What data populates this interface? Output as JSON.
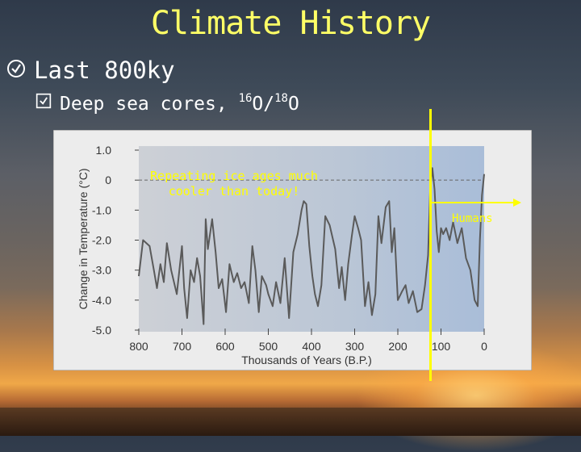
{
  "slide": {
    "title": "Climate History",
    "bullet1": {
      "icon": "check-box-icon",
      "text": "Last 800ky"
    },
    "bullet2": {
      "icon": "check-box-icon",
      "text": "Deep sea cores, ",
      "iso1_mass": "16",
      "iso1_sym": "O/",
      "iso2_mass": "18",
      "iso2_sym": "O"
    }
  },
  "colors": {
    "title": "#ffff66",
    "annotation": "#ffff00",
    "plot_line": "#555555"
  },
  "chart_data": {
    "type": "line",
    "title": "",
    "xlabel": "Thousands of Years (B.P.)",
    "ylabel": "Change in Temperature (°C)",
    "xlim": [
      800,
      0
    ],
    "ylim": [
      -5.0,
      1.0
    ],
    "x_ticks": [
      800,
      700,
      600,
      500,
      400,
      300,
      200,
      100,
      0
    ],
    "x_tick_labels": [
      "800",
      "700",
      "600",
      "500",
      "400",
      "300",
      "200",
      "100",
      "0"
    ],
    "y_ticks": [
      1.0,
      0,
      -1.0,
      -2.0,
      -3.0,
      -4.0,
      -5.0
    ],
    "y_tick_labels": [
      "1.0",
      "0",
      "-1.0",
      "-2.0",
      "-3.0",
      "-4.0",
      "-5.0"
    ],
    "reference_line": {
      "y": 0,
      "style": "dashed"
    },
    "x": [
      800,
      790,
      775,
      765,
      758,
      750,
      742,
      735,
      725,
      712,
      700,
      695,
      688,
      680,
      672,
      665,
      658,
      650,
      645,
      640,
      630,
      622,
      615,
      607,
      598,
      590,
      580,
      572,
      563,
      555,
      545,
      537,
      530,
      522,
      515,
      505,
      500,
      490,
      482,
      472,
      462,
      452,
      442,
      432,
      423,
      418,
      412,
      405,
      398,
      392,
      385,
      377,
      368,
      358,
      345,
      336,
      330,
      322,
      315,
      307,
      300,
      292,
      285,
      276,
      268,
      260,
      252,
      245,
      238,
      228,
      220,
      214,
      208,
      200,
      190,
      182,
      175,
      165,
      155,
      145,
      137,
      130,
      125,
      120,
      115,
      110,
      105,
      100,
      95,
      88,
      80,
      72,
      62,
      52,
      42,
      32,
      22,
      15,
      10,
      5,
      0
    ],
    "series": [
      {
        "values": [
          -3.2,
          -2.0,
          -2.2,
          -3.0,
          -3.6,
          -2.8,
          -3.4,
          -2.1,
          -3.0,
          -3.8,
          -2.2,
          -3.6,
          -4.6,
          -3.0,
          -3.4,
          -2.6,
          -3.2,
          -4.8,
          -1.3,
          -2.3,
          -1.3,
          -2.4,
          -3.6,
          -3.3,
          -4.4,
          -2.8,
          -3.4,
          -3.1,
          -3.6,
          -3.4,
          -4.1,
          -2.2,
          -3.0,
          -4.4,
          -3.2,
          -3.5,
          -3.8,
          -4.2,
          -3.4,
          -4.1,
          -2.6,
          -4.6,
          -2.4,
          -1.8,
          -1.0,
          -0.7,
          -0.8,
          -2.2,
          -3.2,
          -3.8,
          -4.2,
          -3.5,
          -1.2,
          -1.5,
          -2.3,
          -3.6,
          -2.9,
          -4.0,
          -2.8,
          -1.9,
          -1.2,
          -1.6,
          -2.0,
          -4.2,
          -3.4,
          -4.5,
          -3.8,
          -1.2,
          -2.1,
          -0.9,
          -0.7,
          -2.4,
          -1.6,
          -4.0,
          -3.7,
          -3.5,
          -4.1,
          -3.7,
          -4.4,
          -4.3,
          -3.5,
          -2.5,
          -0.3,
          0.4,
          -0.3,
          -1.7,
          -2.4,
          -1.6,
          -1.8,
          -1.6,
          -2.0,
          -1.4,
          -2.1,
          -1.6,
          -2.6,
          -3.0,
          -4.0,
          -4.2,
          -2.0,
          -0.5,
          0.2
        ]
      }
    ],
    "grid": false,
    "legend": "none"
  },
  "annotations": {
    "ice_ages": [
      "Repeating ice ages much",
      "cooler than today!"
    ],
    "humans": "Humans"
  }
}
